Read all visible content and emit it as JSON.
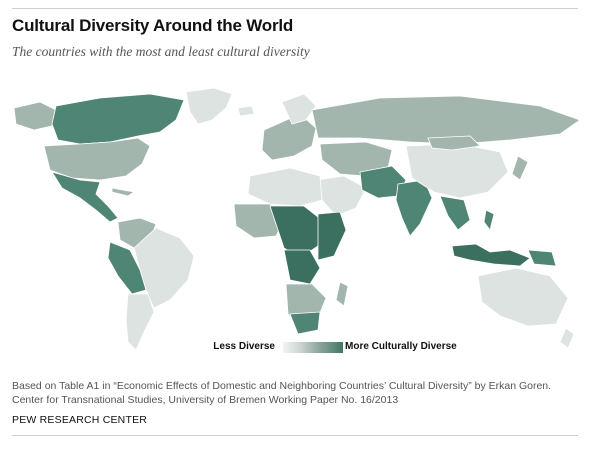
{
  "header": {
    "title": "Cultural Diversity Around the World",
    "subtitle": "The countries with the most and least cultural diversity"
  },
  "legend": {
    "low_label": "Less Diverse",
    "high_label": "More Culturally Diverse",
    "scale_colors": [
      "#f2f4f3",
      "#c9d3cf",
      "#8ea59b",
      "#3f7867"
    ]
  },
  "map": {
    "land_color_base": "#c6d1cd",
    "light_color": "#dde3e0",
    "mid_color": "#a3b6ad",
    "dark_color": "#4f8575",
    "darkest_color": "#3b7060"
  },
  "footer": {
    "note_line1": "Based on Table A1 in “Economic Effects of Domestic and Neighboring Countries’ Cultural Diversity” by Erkan Goren.",
    "note_line2": "Center for Transnational Studies, University of Bremen Working Paper No. 16/2013",
    "source": "PEW RESEARCH CENTER"
  }
}
